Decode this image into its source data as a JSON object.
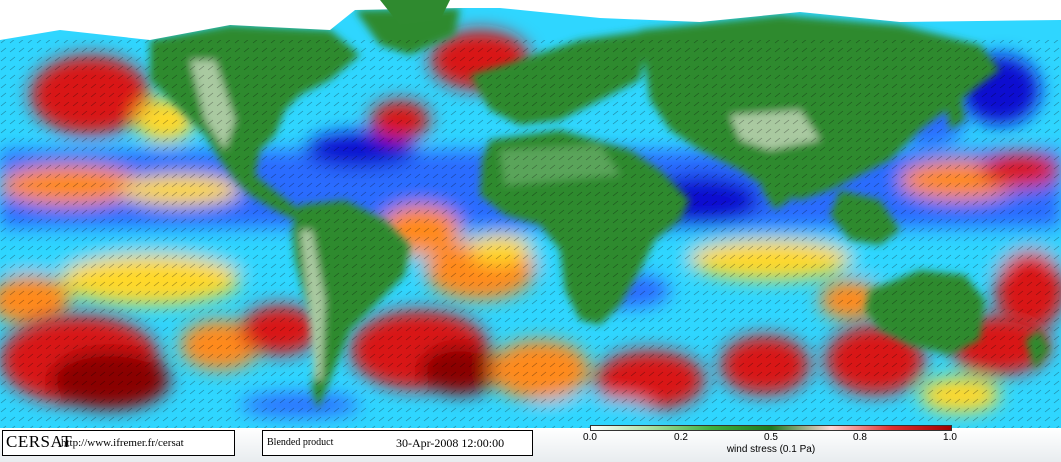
{
  "map": {
    "ocean_colors": [
      "#1010d0",
      "#2a6cff",
      "#2fd6ff",
      "#8cf07a",
      "#ffd82a",
      "#ff8a1a",
      "#d91515",
      "#8a0000"
    ],
    "land_colors": [
      "#1f6b1f",
      "#2f8a2f",
      "#5aa45a",
      "#a9c9a0",
      "#e8efe8"
    ],
    "ice_color": "#ffffff",
    "arrow_color": "#000000"
  },
  "brand": {
    "name": "CERSAT",
    "url": "http://www.ifremer.fr/cersat"
  },
  "info": {
    "product": "Blended product",
    "date": "30-Apr-2008 12:00:00"
  },
  "colorbar": {
    "ticks": [
      "0.0",
      "0.2",
      "0.5",
      "0.8",
      "1.0"
    ],
    "title": "wind stress (0.1 Pa)",
    "gradient": [
      "#ffffff",
      "#a8e0a0",
      "#3fb03f",
      "#1f7a1f",
      "#ffd8d8",
      "#e03030",
      "#a00000"
    ]
  }
}
